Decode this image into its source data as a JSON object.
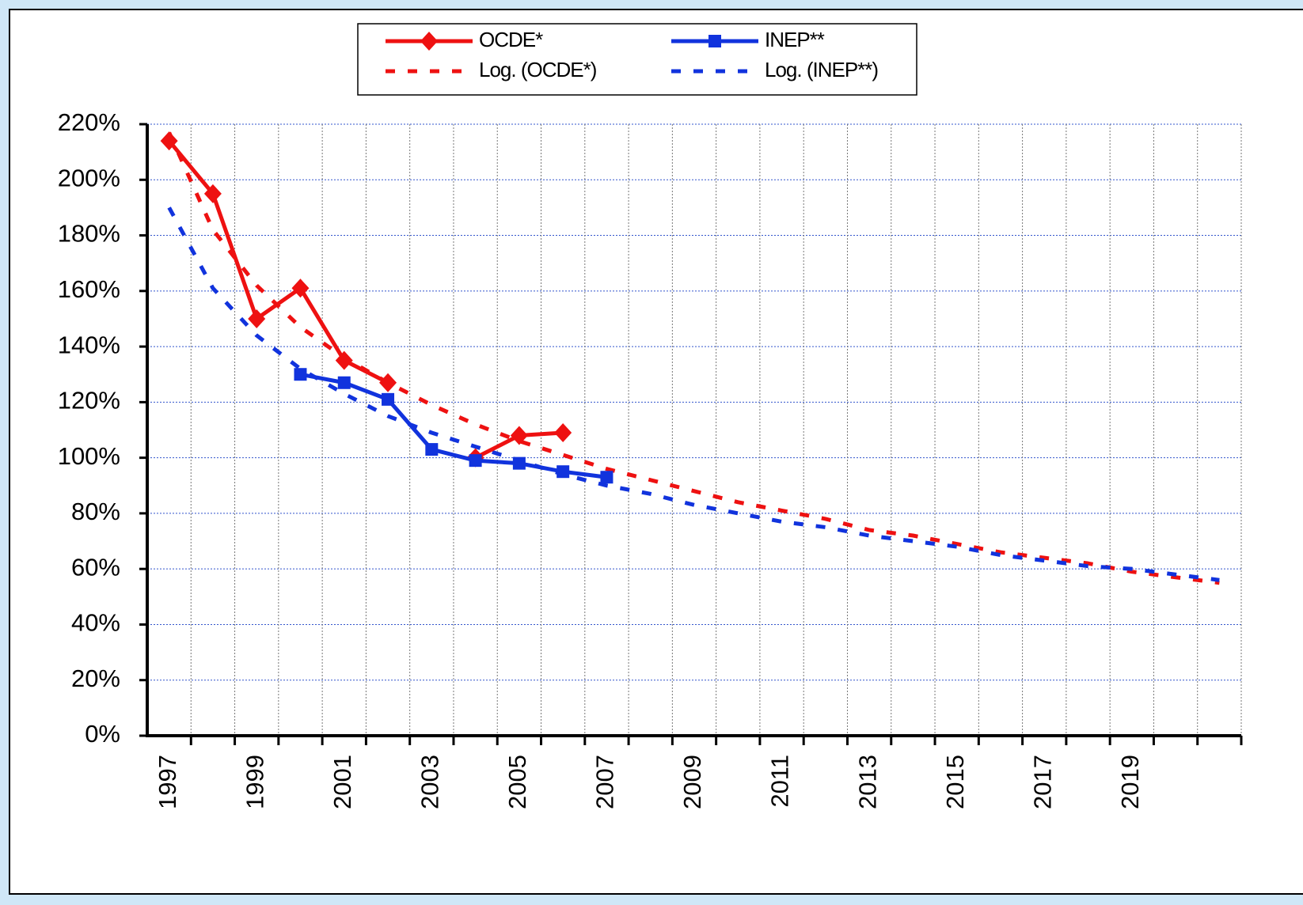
{
  "chart_data": {
    "type": "line",
    "categories": [
      "1997",
      null,
      "1999",
      null,
      "2001",
      null,
      "2003",
      null,
      "2005",
      null,
      "2007",
      null,
      "2009",
      null,
      "2011",
      null,
      "2013",
      null,
      "2015",
      null,
      "2017",
      null,
      "2019",
      null,
      null
    ],
    "series": [
      {
        "name": "OCDE*",
        "color": "#ee1111",
        "marker": "diamond",
        "dashed": false,
        "values": [
          214,
          195,
          150,
          161,
          135,
          127,
          null,
          100,
          108,
          109,
          null,
          null,
          null,
          null,
          null,
          null,
          null,
          null,
          null,
          null,
          null,
          null,
          null,
          null,
          null
        ]
      },
      {
        "name": "Log. (OCDE*)",
        "color": "#ee1111",
        "marker": "none",
        "dashed": true,
        "values": [
          217,
          182,
          162,
          147,
          136,
          127,
          119,
          112,
          106,
          101,
          96,
          92,
          88,
          84,
          81,
          78,
          74,
          72,
          69,
          66,
          64,
          62,
          59,
          57,
          55
        ]
      },
      {
        "name": "INEP**",
        "color": "#1133dd",
        "marker": "square",
        "dashed": false,
        "values": [
          null,
          null,
          null,
          130,
          127,
          121,
          103,
          99,
          98,
          95,
          93,
          null,
          null,
          null,
          null,
          null,
          null,
          null,
          null,
          null,
          null,
          null,
          null,
          null,
          null
        ]
      },
      {
        "name": "Log. (INEP**)",
        "color": "#1133dd",
        "marker": "none",
        "dashed": true,
        "values": [
          190,
          161,
          144,
          132,
          123,
          115,
          109,
          104,
          99,
          94,
          90,
          87,
          83,
          80,
          77,
          75,
          72,
          70,
          68,
          65,
          63,
          61,
          60,
          58,
          56
        ]
      }
    ],
    "ylim": [
      0,
      220
    ],
    "yticks": [
      {
        "value": 0,
        "label": "0%"
      },
      {
        "value": 20,
        "label": "20%"
      },
      {
        "value": 40,
        "label": "40%"
      },
      {
        "value": 60,
        "label": "60%"
      },
      {
        "value": 80,
        "label": "80%"
      },
      {
        "value": 100,
        "label": "100%"
      },
      {
        "value": 120,
        "label": "120%"
      },
      {
        "value": 140,
        "label": "140%"
      },
      {
        "value": 160,
        "label": "160%"
      },
      {
        "value": 180,
        "label": "180%"
      },
      {
        "value": 200,
        "label": "200%"
      },
      {
        "value": 220,
        "label": "220%"
      }
    ],
    "grid": true,
    "legend": "top"
  }
}
